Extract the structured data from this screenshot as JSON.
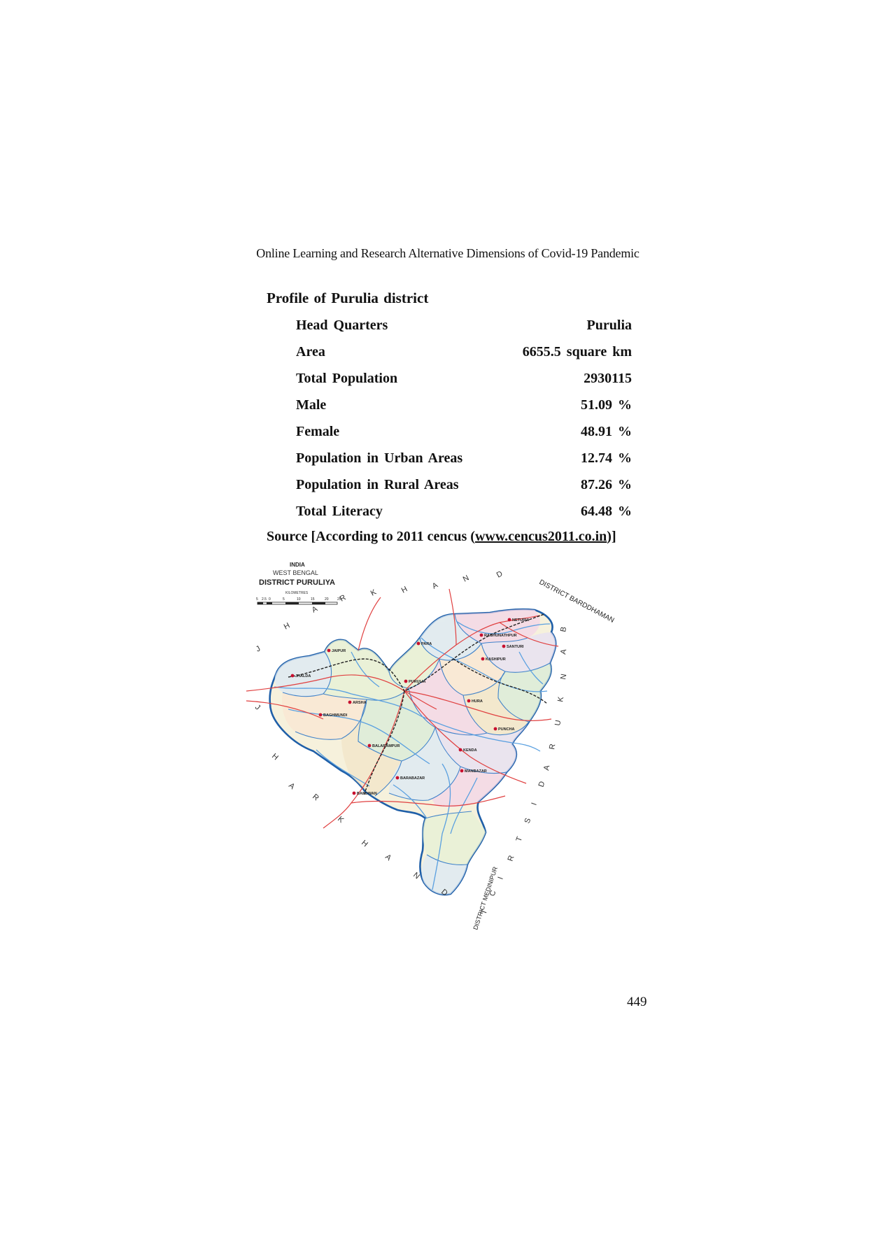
{
  "header": {
    "running_title": "Online Learning and Research Alternative Dimensions of Covid-19 Pandemic"
  },
  "section": {
    "title": "Profile of Purulia district"
  },
  "profile": [
    {
      "label": "Head Quarters",
      "value": "Purulia"
    },
    {
      "label": "Area",
      "value": "6655.5 square km"
    },
    {
      "label": "Total Population",
      "value": "2930115"
    },
    {
      "label": "Male",
      "value": "51.09 %"
    },
    {
      "label": "Female",
      "value": "48.91 %"
    },
    {
      "label": "Population in Urban Areas",
      "value": "12.74 %"
    },
    {
      "label": "Population in Rural Areas",
      "value": "87.26 %"
    },
    {
      "label": "Total Literacy",
      "value": "64.48 %"
    }
  ],
  "source": {
    "prefix": "Source [According to 2011 cencus (",
    "link": "www.cencus2011.co.in",
    "suffix": ")]"
  },
  "map": {
    "title_country": "INDIA",
    "title_state": "WEST BENGAL",
    "title_district": "DISTRICT PURULIYA",
    "scale_label": "KILOMETRES",
    "scale_ticks": [
      "5",
      "2.5",
      "0",
      "5",
      "10",
      "15",
      "20",
      "25"
    ],
    "neighbour_letters": [
      "J",
      "H",
      "A",
      "R",
      "K",
      "H",
      "A",
      "N",
      "D"
    ],
    "neighbour_south_letters": [
      "J",
      "H",
      "A",
      "R",
      "K",
      "H",
      "A",
      "N",
      "D"
    ],
    "neighbour_bankura": [
      "B",
      "A",
      "N",
      "K",
      "U",
      "R",
      "A"
    ],
    "neighbour_district_word": [
      "D",
      "I",
      "S",
      "T",
      "R",
      "I",
      "C",
      "T"
    ],
    "barddhaman_label": "DISTRICT BARDDHAMAN",
    "medinipur_label": "DISTRICT MEDINIPUR",
    "place_labels": [
      "PURULIA",
      "RAGHUNATHPUR",
      "KASHIPUR",
      "HURA",
      "PUNCHA",
      "MANBAZAR",
      "BARABAZAR",
      "BANDWAN",
      "JHALDA",
      "BAGHMUNDI",
      "ARSHA",
      "JAIPUR",
      "PARA",
      "SANTURI",
      "NETURIA",
      "KENDA",
      "BALARAMPUR"
    ],
    "colors": {
      "boundary": "#1f5fa8",
      "river": "#5aa0e0",
      "road": "#e04040",
      "rail": "#222222"
    }
  },
  "page": {
    "number": "449"
  }
}
